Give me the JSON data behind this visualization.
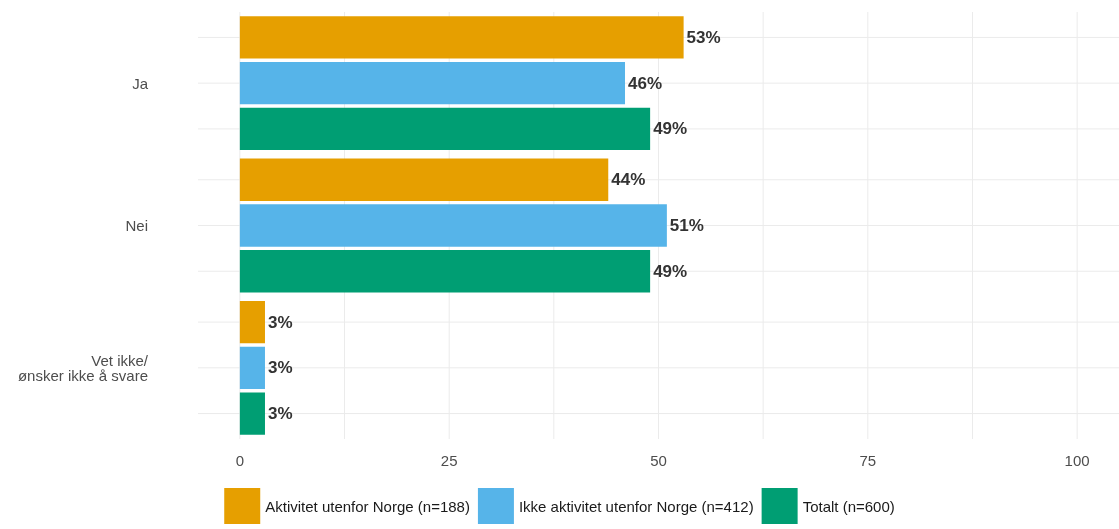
{
  "chart_data": {
    "type": "bar",
    "orientation": "horizontal",
    "categories": [
      "Ja",
      "Nei",
      "Vet ikke/\nønsker ikke å svare"
    ],
    "series": [
      {
        "name": "Aktivitet utenfor Norge (n=188)",
        "color": "#e69f00",
        "values": [
          53,
          44,
          3
        ],
        "value_labels": [
          "53%",
          "44%",
          "3%"
        ]
      },
      {
        "name": "Ikke aktivitet utenfor Norge (n=412)",
        "color": "#56b4e9",
        "values": [
          46,
          51,
          3
        ],
        "value_labels": [
          "46%",
          "51%",
          "3%"
        ]
      },
      {
        "name": "Totalt (n=600)",
        "color": "#009e73",
        "values": [
          49,
          49,
          3
        ],
        "value_labels": [
          "49%",
          "49%",
          "3%"
        ]
      }
    ],
    "xlim": [
      -5,
      105
    ],
    "xticks": [
      0,
      {
        "value": 12.5,
        "label": null
      },
      25,
      {
        "value": 37.5,
        "label": null
      },
      50,
      {
        "value": 62.5,
        "label": null
      },
      75,
      {
        "value": 87.5,
        "label": null
      },
      100
    ],
    "grid": true,
    "legend": "bottom"
  }
}
